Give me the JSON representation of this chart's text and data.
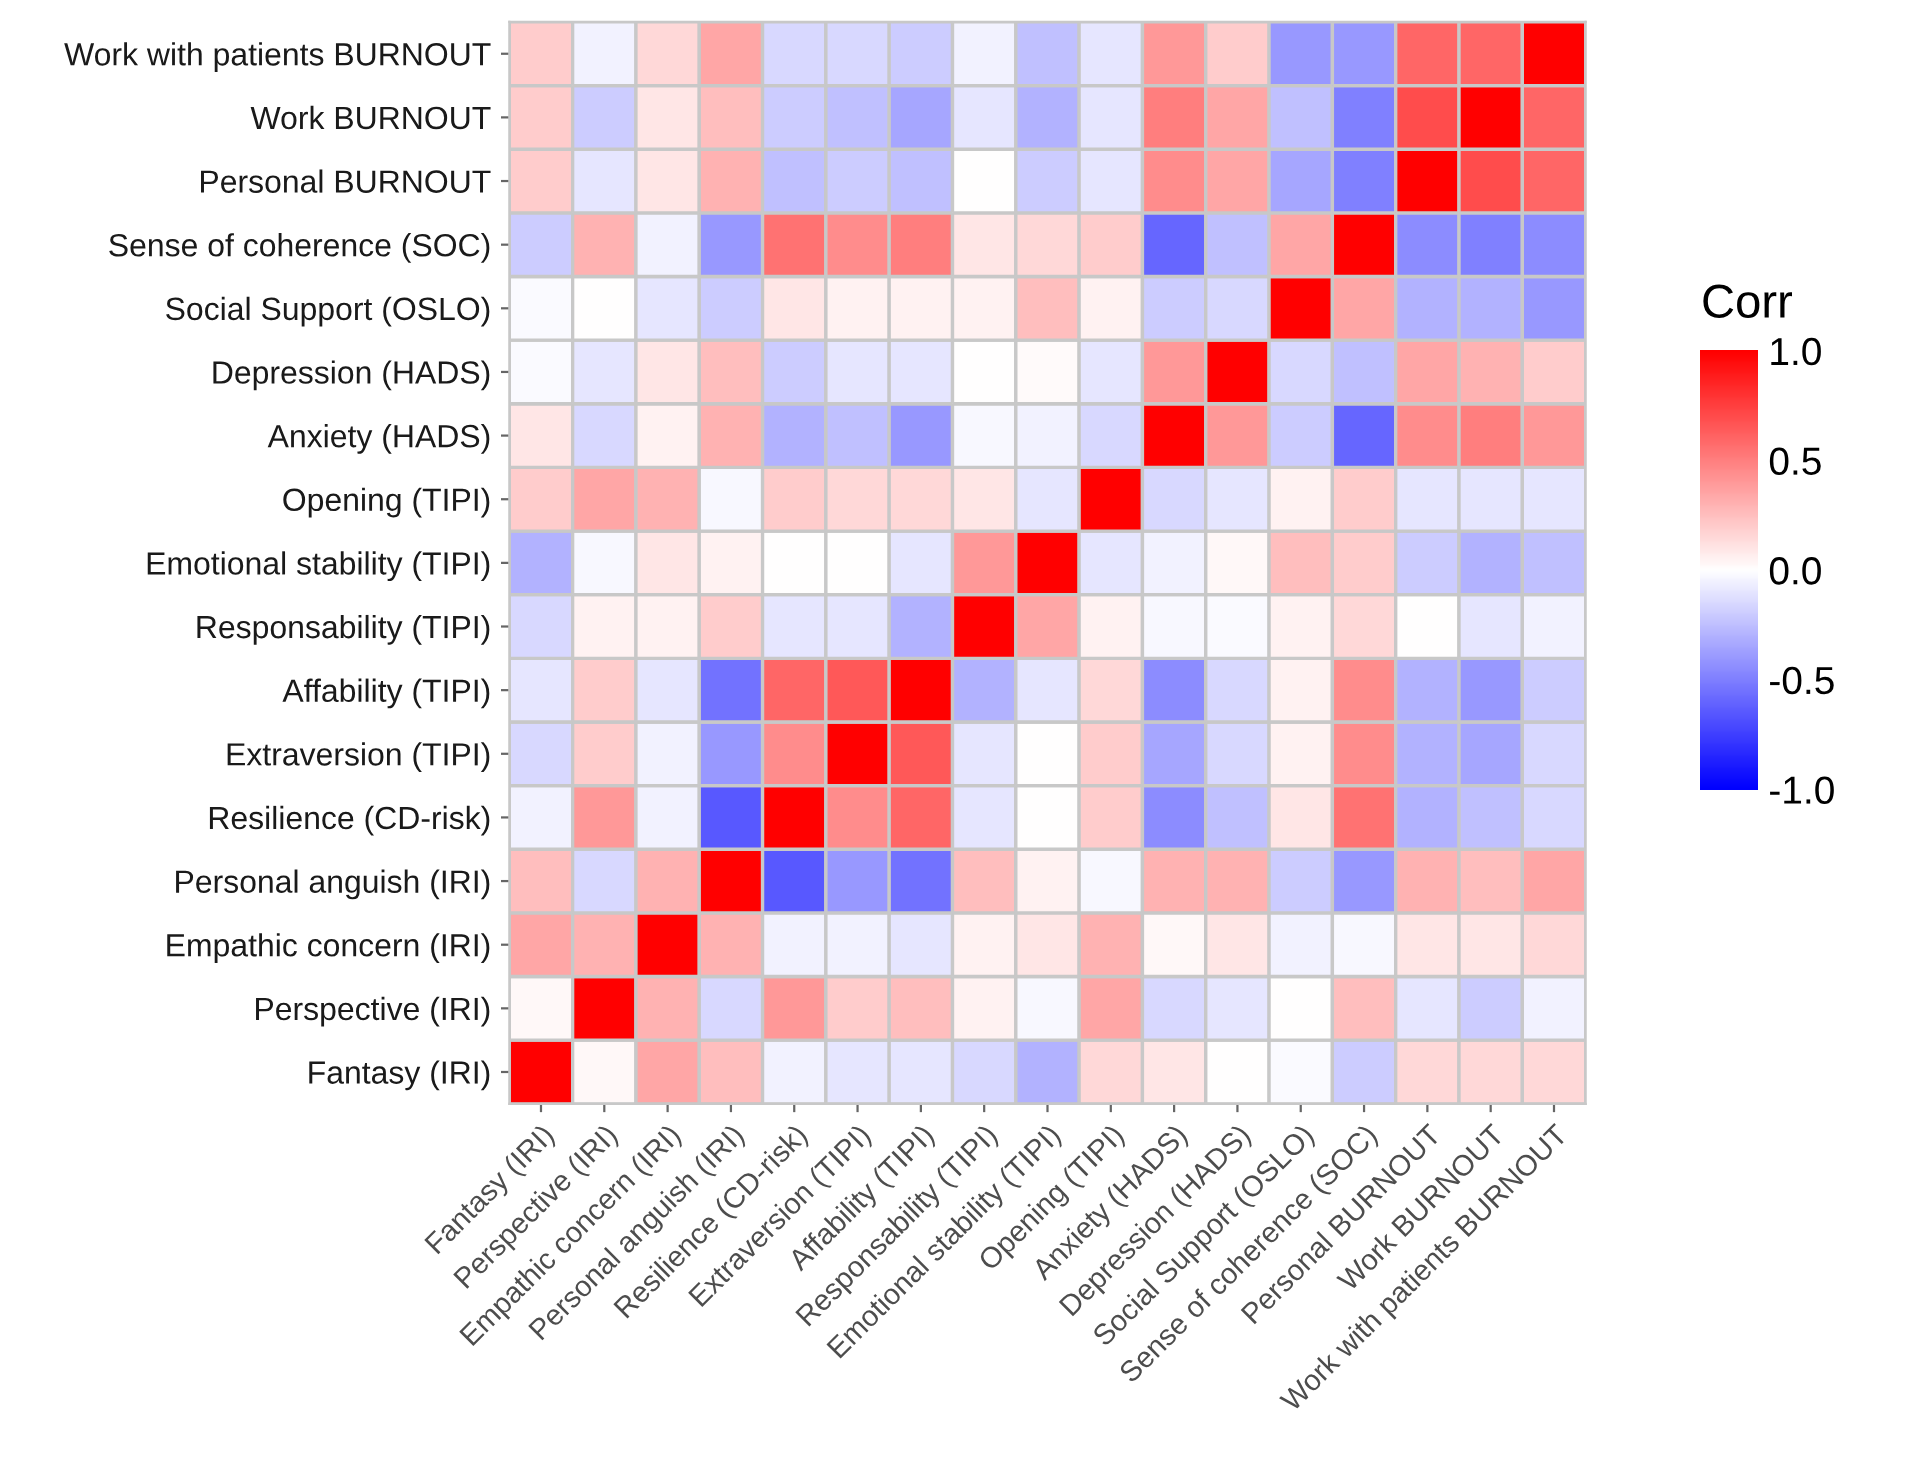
{
  "chart_data": {
    "type": "heatmap",
    "categories": [
      "Fantasy (IRI)",
      "Perspective (IRI)",
      "Empathic concern (IRI)",
      "Personal anguish (IRI)",
      "Resilience (CD-risk)",
      "Extraversion (TIPI)",
      "Affability (TIPI)",
      "Responsability (TIPI)",
      "Emotional stability (TIPI)",
      "Opening (TIPI)",
      "Anxiety (HADS)",
      "Depression (HADS)",
      "Social Support (OSLO)",
      "Sense of coherence (SOC)",
      "Personal BURNOUT",
      "Work BURNOUT",
      "Work with patients BURNOUT"
    ],
    "y_categories": [
      "Work with patients BURNOUT",
      "Work BURNOUT",
      "Personal BURNOUT",
      "Sense of coherence (SOC)",
      "Social Support (OSLO)",
      "Depression (HADS)",
      "Anxiety (HADS)",
      "Opening (TIPI)",
      "Emotional stability (TIPI)",
      "Responsability (TIPI)",
      "Affability (TIPI)",
      "Extraversion (TIPI)",
      "Resilience (CD-risk)",
      "Personal anguish (IRI)",
      "Empathic concern (IRI)",
      "Perspective (IRI)",
      "Fantasy (IRI)"
    ],
    "cells": [
      [
        0.2,
        -0.05,
        0.15,
        0.35,
        -0.15,
        -0.15,
        -0.2,
        -0.05,
        -0.25,
        -0.1,
        0.4,
        0.2,
        -0.4,
        -0.4,
        0.6,
        0.6,
        1
      ],
      [
        0.2,
        -0.2,
        0.1,
        0.25,
        -0.2,
        -0.25,
        -0.35,
        -0.1,
        -0.3,
        -0.1,
        0.5,
        0.35,
        -0.25,
        -0.5,
        0.7,
        1,
        0.6
      ],
      [
        0.2,
        -0.1,
        0.1,
        0.3,
        -0.25,
        -0.2,
        -0.25,
        0,
        -0.2,
        -0.1,
        0.45,
        0.35,
        -0.35,
        -0.5,
        1,
        0.7,
        0.6
      ],
      [
        -0.2,
        0.3,
        -0.05,
        -0.4,
        0.55,
        0.45,
        0.5,
        0.1,
        0.15,
        0.2,
        -0.6,
        -0.25,
        0.35,
        1,
        -0.45,
        -0.5,
        -0.45
      ],
      [
        -0.02,
        0,
        -0.1,
        -0.2,
        0.1,
        0.05,
        0.05,
        0.05,
        0.25,
        0.05,
        -0.2,
        -0.15,
        1,
        0.35,
        -0.3,
        -0.3,
        -0.4
      ],
      [
        -0.02,
        -0.1,
        0.1,
        0.25,
        -0.2,
        -0.1,
        -0.1,
        0,
        0.02,
        -0.1,
        0.4,
        1,
        -0.15,
        -0.25,
        0.35,
        0.3,
        0.2
      ],
      [
        0.1,
        -0.15,
        0.05,
        0.3,
        -0.3,
        -0.25,
        -0.4,
        -0.03,
        -0.05,
        -0.15,
        1,
        0.4,
        -0.2,
        -0.6,
        0.45,
        0.5,
        0.4
      ],
      [
        0.2,
        0.35,
        0.3,
        -0.03,
        0.2,
        0.15,
        0.15,
        0.1,
        -0.1,
        1,
        -0.15,
        -0.1,
        0.05,
        0.2,
        -0.1,
        -0.1,
        -0.1
      ],
      [
        -0.3,
        -0.03,
        0.1,
        0.05,
        0,
        0,
        -0.1,
        0.4,
        1,
        -0.1,
        -0.05,
        0.03,
        0.25,
        0.2,
        -0.2,
        -0.3,
        -0.25
      ],
      [
        -0.15,
        0.05,
        0.05,
        0.2,
        -0.1,
        -0.1,
        -0.3,
        1,
        0.35,
        0.05,
        -0.03,
        -0.02,
        0.05,
        0.15,
        0,
        -0.1,
        -0.05
      ],
      [
        -0.1,
        0.2,
        -0.1,
        -0.55,
        0.6,
        0.65,
        1,
        -0.3,
        -0.1,
        0.15,
        -0.45,
        -0.15,
        0.05,
        0.45,
        -0.3,
        -0.4,
        -0.2
      ],
      [
        -0.15,
        0.2,
        -0.05,
        -0.4,
        0.45,
        1,
        0.65,
        -0.1,
        0,
        0.2,
        -0.35,
        -0.15,
        0.05,
        0.45,
        -0.3,
        -0.35,
        -0.15
      ],
      [
        -0.05,
        0.4,
        -0.05,
        -0.65,
        1,
        0.45,
        0.6,
        -0.1,
        0,
        0.2,
        -0.45,
        -0.25,
        0.1,
        0.55,
        -0.3,
        -0.25,
        -0.15
      ],
      [
        0.25,
        -0.15,
        0.3,
        1,
        -0.65,
        -0.4,
        -0.55,
        0.25,
        0.05,
        -0.03,
        0.3,
        0.3,
        -0.2,
        -0.4,
        0.3,
        0.25,
        0.35
      ],
      [
        0.35,
        0.3,
        1,
        0.3,
        -0.05,
        -0.05,
        -0.1,
        0.05,
        0.1,
        0.3,
        0.03,
        0.1,
        -0.05,
        -0.03,
        0.1,
        0.1,
        0.15
      ],
      [
        0.03,
        1,
        0.3,
        -0.15,
        0.4,
        0.2,
        0.25,
        0.05,
        -0.03,
        0.35,
        -0.15,
        -0.1,
        0,
        0.25,
        -0.1,
        -0.2,
        -0.05
      ],
      [
        1,
        0.03,
        0.35,
        0.25,
        -0.05,
        -0.1,
        -0.1,
        -0.15,
        -0.3,
        0.15,
        0.1,
        0,
        -0.02,
        -0.2,
        0.15,
        0.15,
        0.15
      ]
    ],
    "clabel": "Corr",
    "clim": [
      -1,
      1
    ],
    "cticks": [
      {
        "value": -1,
        "label": "-1.0"
      },
      {
        "value": -0.5,
        "label": "-0.5"
      },
      {
        "value": 0,
        "label": "0.0"
      },
      {
        "value": 0.5,
        "label": "0.5"
      },
      {
        "value": 1,
        "label": "1.0"
      }
    ]
  }
}
